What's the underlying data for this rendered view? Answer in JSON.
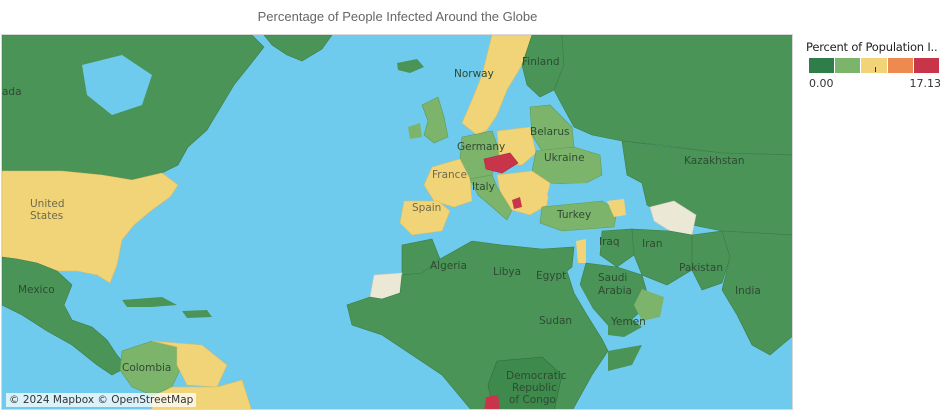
{
  "title": "Percentage of People Infected Around the Globe",
  "legend": {
    "title": "Percent of  Population I..",
    "min_label": "0.00",
    "max_label": "17.13",
    "min_value": 0.0,
    "max_value": 17.13,
    "colors": [
      "#2e7d4a",
      "#7db46c",
      "#f1d478",
      "#ee8a4f",
      "#c8344a"
    ]
  },
  "colors": {
    "water": "#6fcbed",
    "low": "#4a9457",
    "low_mid": "#7db46c",
    "mid": "#f1d478",
    "high": "#c8344a",
    "no_data": "#ece8d6"
  },
  "map_labels": [
    {
      "id": "canada",
      "text": "ada",
      "tone": "dark"
    },
    {
      "id": "united-states",
      "text": "United\nStates",
      "tone": "light"
    },
    {
      "id": "mexico",
      "text": "Mexico",
      "tone": "dark"
    },
    {
      "id": "colombia",
      "text": "Colombia",
      "tone": "dark"
    },
    {
      "id": "norway",
      "text": "Norway",
      "tone": "dark"
    },
    {
      "id": "finland",
      "text": "Finland",
      "tone": "dark"
    },
    {
      "id": "belarus",
      "text": "Belarus",
      "tone": "dark"
    },
    {
      "id": "germany",
      "text": "Germany",
      "tone": "dark"
    },
    {
      "id": "ukraine",
      "text": "Ukraine",
      "tone": "dark"
    },
    {
      "id": "france",
      "text": "France",
      "tone": "light"
    },
    {
      "id": "italy",
      "text": "Italy",
      "tone": "dark"
    },
    {
      "id": "spain",
      "text": "Spain",
      "tone": "light"
    },
    {
      "id": "turkey",
      "text": "Turkey",
      "tone": "dark"
    },
    {
      "id": "kazakhstan",
      "text": "Kazakhstan",
      "tone": "dark"
    },
    {
      "id": "iraq",
      "text": "Iraq",
      "tone": "dark"
    },
    {
      "id": "iran",
      "text": "Iran",
      "tone": "dark"
    },
    {
      "id": "pakistan",
      "text": "Pakistan",
      "tone": "dark"
    },
    {
      "id": "algeria",
      "text": "Algeria",
      "tone": "dark"
    },
    {
      "id": "libya",
      "text": "Libya",
      "tone": "dark"
    },
    {
      "id": "egypt",
      "text": "Egypt",
      "tone": "dark"
    },
    {
      "id": "saudi-arabia",
      "text": "Saudi\nArabia",
      "tone": "dark"
    },
    {
      "id": "india",
      "text": "India",
      "tone": "dark"
    },
    {
      "id": "yemen",
      "text": "Yemen",
      "tone": "dark"
    },
    {
      "id": "sudan",
      "text": "Sudan",
      "tone": "dark"
    },
    {
      "id": "drc",
      "text": "Democratic\nRepublic\nof Congo",
      "tone": "dark"
    }
  ],
  "attribution": "© 2024 Mapbox © OpenStreetMap"
}
